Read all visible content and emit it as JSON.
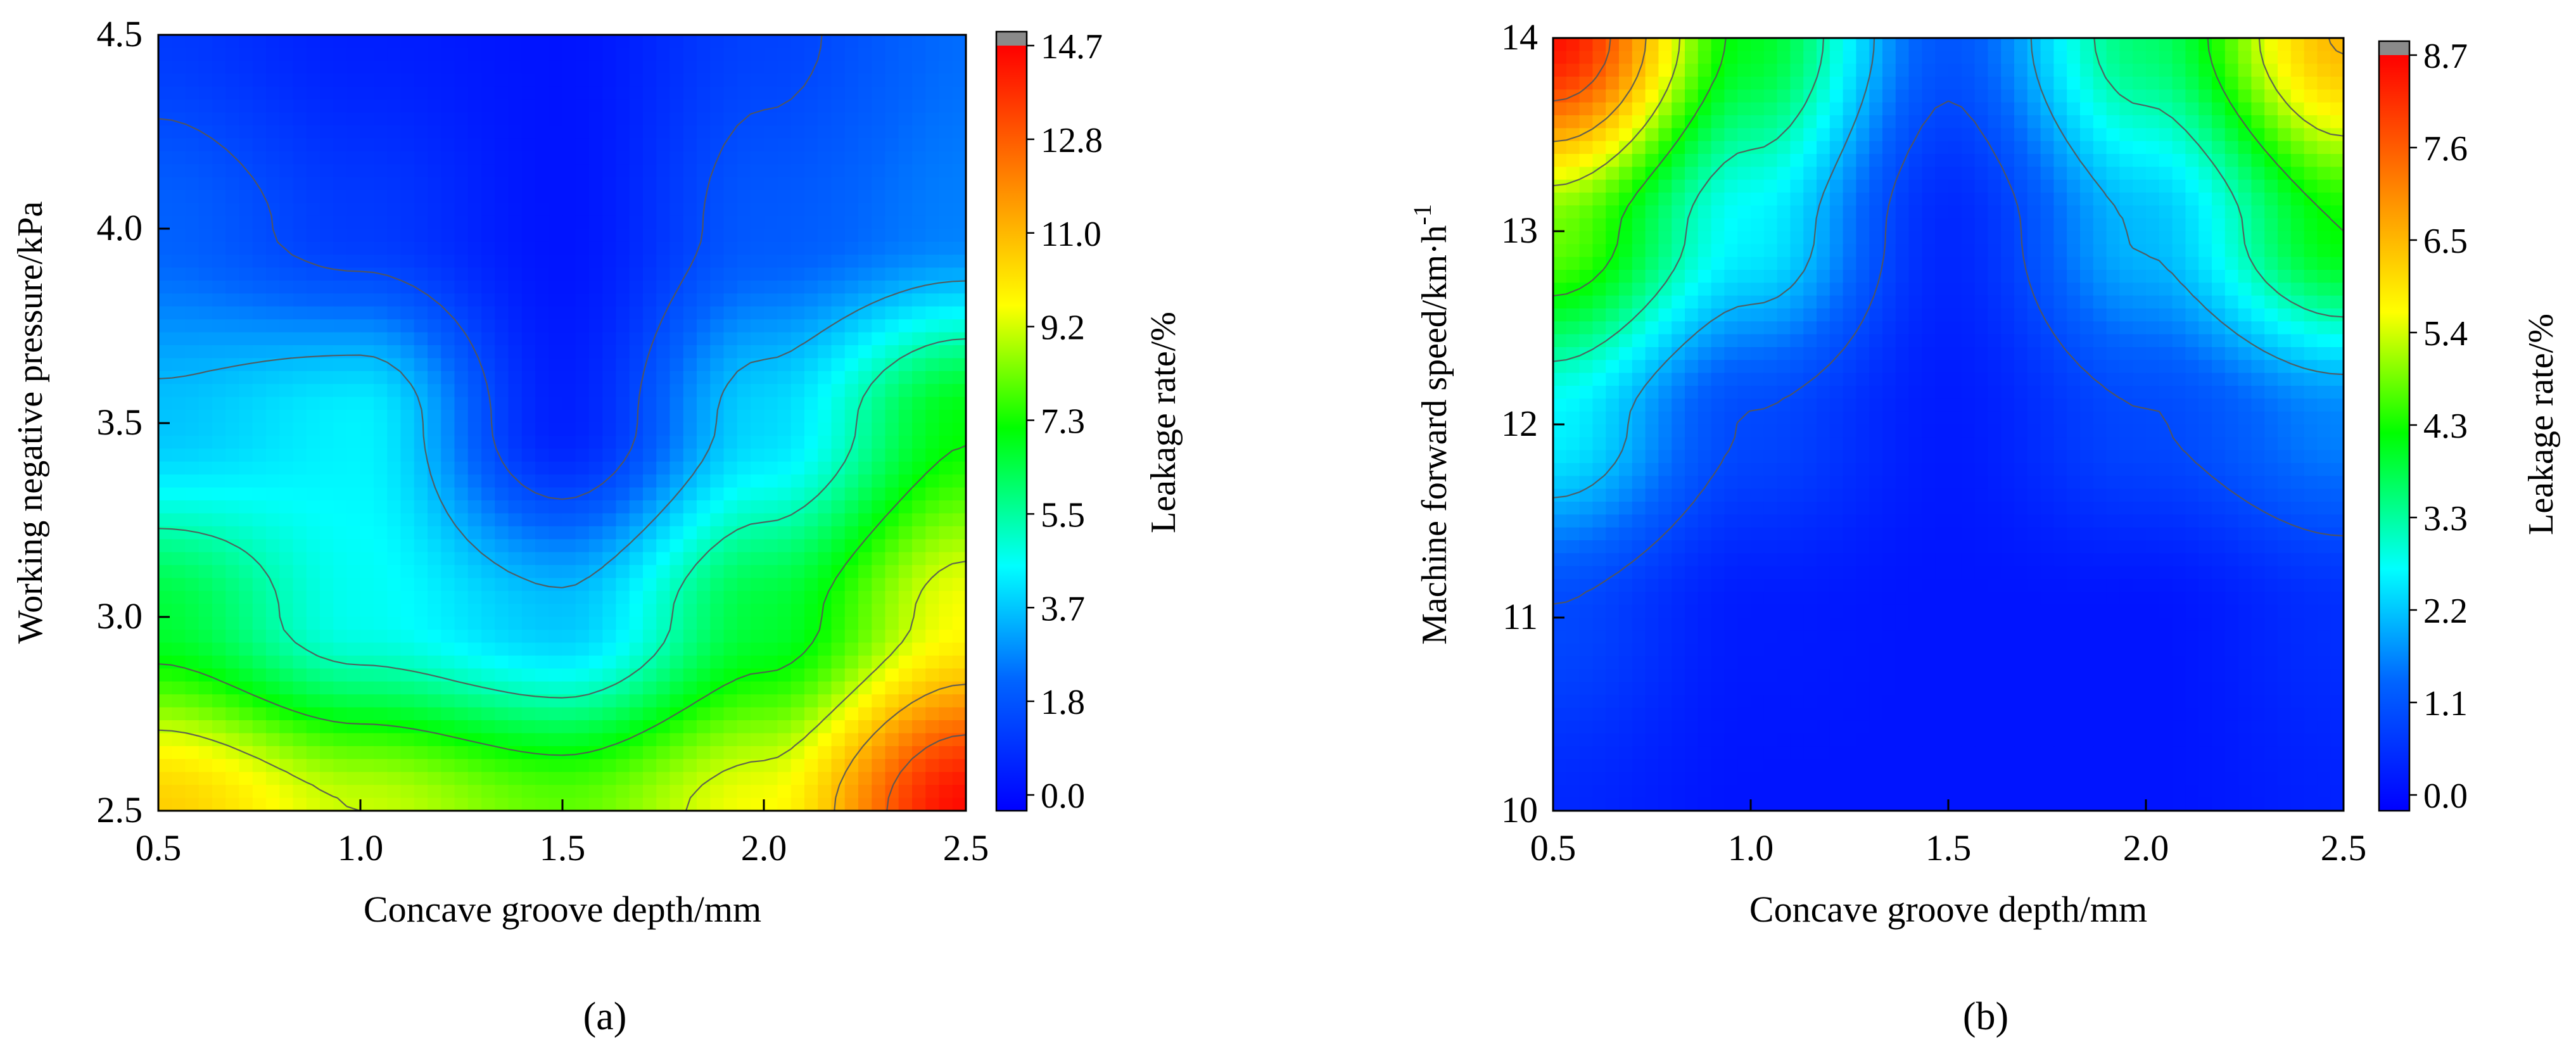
{
  "chart_data": [
    {
      "type": "heatmap",
      "panel_label": "(a)",
      "xlabel": "Concave groove depth/mm",
      "ylabel": "Working negative pressure/kPa",
      "xlim": [
        0.5,
        2.5
      ],
      "ylim": [
        2.5,
        4.5
      ],
      "xticks": [
        "0.5",
        "1.0",
        "1.5",
        "2.0",
        "2.5"
      ],
      "yticks": [
        "2.5",
        "3.0",
        "3.5",
        "4.0",
        "4.5"
      ],
      "colorbar": {
        "label": "Leakage rate/%",
        "min": -0.5,
        "max": 14.7,
        "ticks": [
          "0.0",
          "1.8",
          "3.7",
          "5.5",
          "7.3",
          "9.2",
          "11.0",
          "12.8",
          "14.7"
        ]
      },
      "z_grid_x": [
        0.5,
        1.0,
        1.5,
        2.0,
        2.5
      ],
      "z_grid_y": [
        2.5,
        3.0,
        3.5,
        4.0,
        4.5
      ],
      "z_grid": [
        [
          10.5,
          9.0,
          8.0,
          9.5,
          14.5
        ],
        [
          6.5,
          4.5,
          3.5,
          6.5,
          9.5
        ],
        [
          3.5,
          4.2,
          0.3,
          3.8,
          7.0
        ],
        [
          2.0,
          1.0,
          0.0,
          1.8,
          2.5
        ],
        [
          1.0,
          0.3,
          0.0,
          1.2,
          2.2
        ]
      ]
    },
    {
      "type": "heatmap",
      "panel_label": "(b)",
      "xlabel": "Concave groove depth/mm",
      "ylabel": "Machine forward speed/km·h",
      "ylabel_superscript": "-1",
      "xlim": [
        0.5,
        2.5
      ],
      "ylim": [
        10,
        14
      ],
      "xticks": [
        "0.5",
        "1.0",
        "1.5",
        "2.0",
        "2.5"
      ],
      "yticks": [
        "10",
        "11",
        "12",
        "13",
        "14"
      ],
      "colorbar": {
        "label": "Leakage rate/%",
        "min": -0.3,
        "max": 8.7,
        "ticks": [
          "0.0",
          "1.1",
          "2.2",
          "3.3",
          "4.3",
          "5.4",
          "6.5",
          "7.6",
          "8.7"
        ]
      },
      "z_grid_x": [
        0.5,
        1.0,
        1.5,
        2.0,
        2.5
      ],
      "z_grid_y": [
        10,
        11,
        12,
        13,
        14
      ],
      "z_grid": [
        [
          0.3,
          0.0,
          0.0,
          0.0,
          0.2
        ],
        [
          0.8,
          0.1,
          0.0,
          0.0,
          0.4
        ],
        [
          2.5,
          0.8,
          0.1,
          0.8,
          1.5
        ],
        [
          4.8,
          2.5,
          0.3,
          2.0,
          4.2
        ],
        [
          8.5,
          4.0,
          1.0,
          3.5,
          6.5
        ]
      ]
    }
  ]
}
